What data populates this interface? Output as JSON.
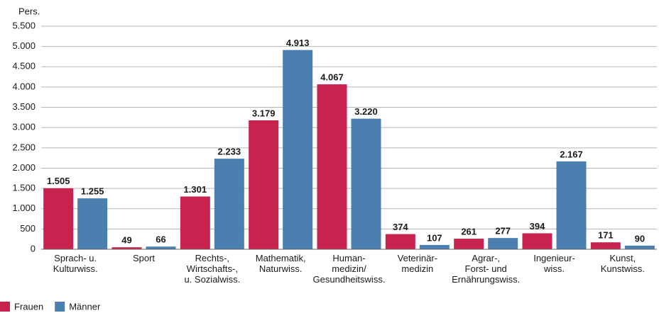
{
  "chart_data": {
    "type": "bar",
    "y_label": "Pers.",
    "categories": [
      "Sprach- u.\nKulturwiss.",
      "Sport",
      "Rechts-,\nWirtschafts-,\nu. Sozialwiss.",
      "Mathematik,\nNaturwiss.",
      "Human-\nmedizin/\nGesundheitswiss.",
      "Veterinär-\nmedizin",
      "Agrar-,\nForst- und\nErnährungswiss.",
      "Ingenieur-\nwiss.",
      "Kunst,\nKunstwiss."
    ],
    "series": [
      {
        "name": "Frauen",
        "color": "#c8224f",
        "values": [
          1505,
          49,
          1301,
          3179,
          4067,
          374,
          261,
          394,
          171
        ],
        "value_labels": [
          "1.505",
          "49",
          "1.301",
          "3.179",
          "4.067",
          "374",
          "261",
          "394",
          "171"
        ]
      },
      {
        "name": "Männer",
        "color": "#4a7fb0",
        "values": [
          1255,
          66,
          2233,
          4913,
          3220,
          107,
          277,
          2167,
          90
        ],
        "value_labels": [
          "1.255",
          "66",
          "2.233",
          "4.913",
          "3.220",
          "107",
          "277",
          "2.167",
          "90"
        ]
      }
    ],
    "ylim": [
      0,
      5500
    ],
    "yticks": [
      0,
      500,
      {
        "value": 1000,
        "label": "1.000"
      },
      {
        "value": 1500,
        "label": "1.500"
      },
      {
        "value": 2000,
        "label": "2.000"
      },
      {
        "value": 2500,
        "label": "2.500"
      },
      {
        "value": 3000,
        "label": "3.000"
      },
      {
        "value": 3500,
        "label": "3.500"
      },
      {
        "value": 4000,
        "label": "4.000"
      },
      {
        "value": 4500,
        "label": "4.500"
      },
      {
        "value": 5000,
        "label": "5.000"
      },
      {
        "value": 5500,
        "label": "5.500"
      }
    ],
    "grid": true
  }
}
